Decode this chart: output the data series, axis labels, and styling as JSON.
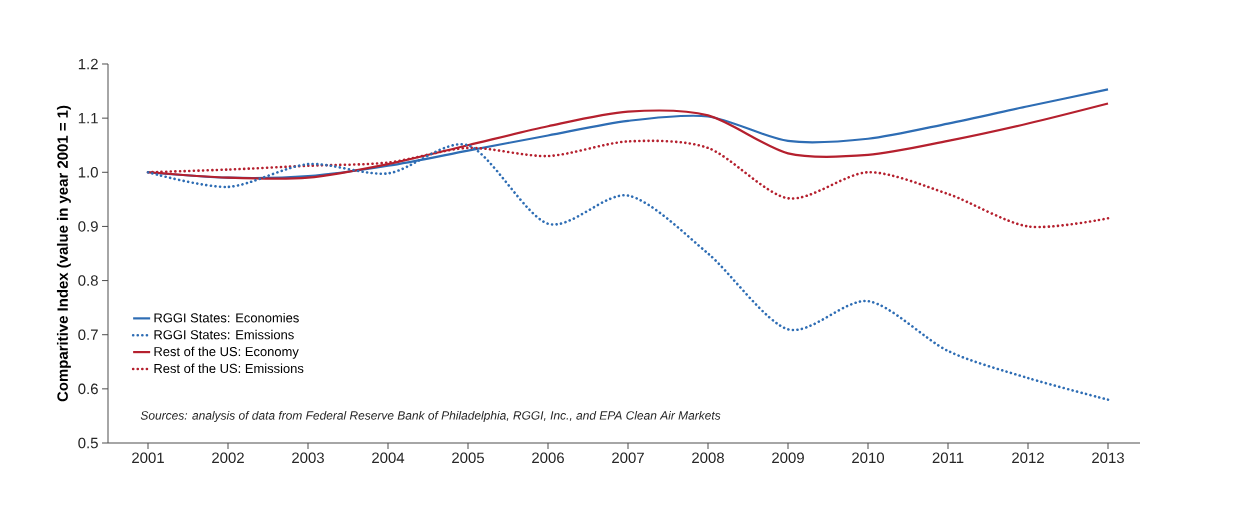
{
  "chart_data": {
    "type": "line",
    "ylabel": "Comparitive Index (value in year 2001 = 1)",
    "annotations": [
      "Sources: analysis of data from Federal Reserve Bank of Philadelphia, RGGI, Inc., and EPA Clean Air Markets"
    ],
    "x": [
      2001,
      2002,
      2003,
      2004,
      2005,
      2006,
      2007,
      2008,
      2009,
      2010,
      2011,
      2012,
      2013
    ],
    "series": [
      {
        "name": "RGGI States: Economies",
        "color": "#2e6db4",
        "line_style": "solid",
        "values": [
          1.0,
          0.99,
          0.993,
          1.012,
          1.04,
          1.068,
          1.095,
          1.103,
          1.058,
          1.062,
          1.09,
          1.122,
          1.153
        ]
      },
      {
        "name": "RGGI States: Emissions",
        "color": "#2e6db4",
        "line_style": "dotted",
        "values": [
          1.0,
          0.973,
          1.015,
          0.998,
          1.05,
          0.905,
          0.957,
          0.85,
          0.71,
          0.762,
          0.67,
          0.62,
          0.58
        ]
      },
      {
        "name": "Rest of the US: Economy",
        "color": "#b5202e",
        "line_style": "solid",
        "values": [
          1.0,
          0.99,
          0.99,
          1.015,
          1.05,
          1.085,
          1.112,
          1.105,
          1.035,
          1.032,
          1.058,
          1.09,
          1.127
        ]
      },
      {
        "name": "Rest of the US: Emissions",
        "color": "#b5202e",
        "line_style": "dotted",
        "values": [
          1.0,
          1.005,
          1.012,
          1.018,
          1.045,
          1.03,
          1.057,
          1.045,
          0.952,
          1.0,
          0.96,
          0.9,
          0.915
        ]
      }
    ],
    "xlim": [
      2000.5,
      2013.4
    ],
    "xticks": [
      2001,
      2002,
      2003,
      2004,
      2005,
      2006,
      2007,
      2008,
      2009,
      2010,
      2011,
      2012,
      2013
    ],
    "ylim": [
      0.5,
      1.2
    ],
    "yticks": [
      {
        "value": 0.5,
        "label": "0.5"
      },
      {
        "value": 0.6,
        "label": "0.6"
      },
      {
        "value": 0.7,
        "label": "0.7"
      },
      {
        "value": 0.8,
        "label": "0.8"
      },
      {
        "value": 0.9,
        "label": "0.9"
      },
      {
        "value": 1.0,
        "label": "1.0"
      },
      {
        "value": 1.1,
        "label": "1.1"
      },
      {
        "value": 1.2,
        "label": "1.2"
      }
    ],
    "grid": false,
    "legend": "bottom left",
    "marker": "none"
  }
}
